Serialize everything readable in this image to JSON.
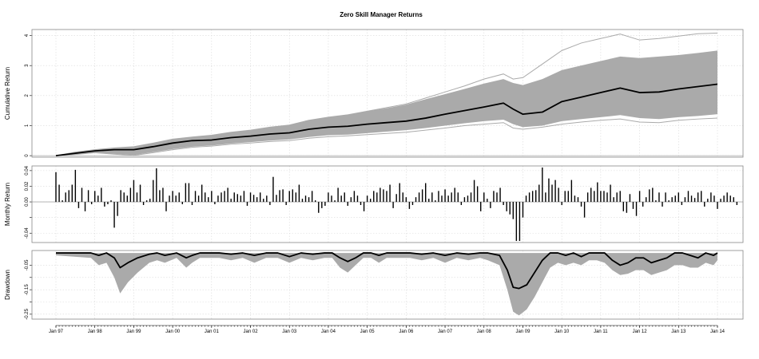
{
  "colors": {
    "main": "#000000",
    "simulations": "#aaaaaa",
    "grid": "#d9d9d9"
  },
  "chart_data": {
    "type": "line",
    "title": "Zero Skill Manager Returns",
    "x_tick_labels": [
      "Jan 97",
      "Jan 98",
      "Jan 99",
      "Jan 00",
      "Jan 01",
      "Jan 02",
      "Jan 03",
      "Jan 04",
      "Jan 05",
      "Jan 06",
      "Jan 07",
      "Jan 08",
      "Jan 09",
      "Jan 10",
      "Jan 11",
      "Jan 12",
      "Jan 13",
      "Jan 14"
    ],
    "x_range": [
      "Jan 97",
      "Jan 14"
    ],
    "grid": true,
    "panels": [
      {
        "id": "cumulative",
        "type": "line",
        "ylabel": "Cumulative Return",
        "ylim": [
          -0.05,
          4.2
        ],
        "yticks": [
          0,
          1,
          2,
          3,
          4
        ],
        "ytick_labels": [
          "0",
          "1",
          "2",
          "3",
          "4"
        ],
        "main_series": {
          "x": [
            1997,
            1997.5,
            1998,
            1998.5,
            1999,
            1999.5,
            2000,
            2000.5,
            2001,
            2001.5,
            2002,
            2002.5,
            2003,
            2003.5,
            2004,
            2004.5,
            2005,
            2005.5,
            2006,
            2006.5,
            2007,
            2007.5,
            2008,
            2008.5,
            2008.75,
            2009,
            2009.5,
            2010,
            2010.5,
            2011,
            2011.5,
            2012,
            2012.5,
            2013,
            2013.5,
            2014
          ],
          "y": [
            0,
            0.08,
            0.16,
            0.2,
            0.2,
            0.3,
            0.42,
            0.5,
            0.52,
            0.6,
            0.65,
            0.72,
            0.76,
            0.88,
            0.95,
            0.98,
            1.05,
            1.1,
            1.15,
            1.25,
            1.38,
            1.5,
            1.62,
            1.75,
            1.55,
            1.38,
            1.45,
            1.8,
            1.95,
            2.1,
            2.25,
            2.1,
            2.12,
            2.22,
            2.3,
            2.38
          ]
        },
        "band": {
          "upper": [
            0,
            0.12,
            0.2,
            0.26,
            0.3,
            0.42,
            0.55,
            0.62,
            0.68,
            0.78,
            0.85,
            0.95,
            1.02,
            1.18,
            1.28,
            1.36,
            1.48,
            1.58,
            1.7,
            1.88,
            2.05,
            2.22,
            2.4,
            2.55,
            2.42,
            2.35,
            2.55,
            2.85,
            3.0,
            3.15,
            3.3,
            3.25,
            3.3,
            3.35,
            3.42,
            3.5
          ],
          "lower": [
            0,
            0.04,
            0.1,
            0.06,
            0.02,
            0.12,
            0.22,
            0.3,
            0.34,
            0.4,
            0.45,
            0.5,
            0.54,
            0.62,
            0.68,
            0.7,
            0.75,
            0.8,
            0.85,
            0.92,
            1.0,
            1.08,
            1.15,
            1.2,
            1.05,
            0.95,
            1.0,
            1.15,
            1.22,
            1.28,
            1.35,
            1.25,
            1.22,
            1.28,
            1.32,
            1.38
          ]
        },
        "extreme_upper": [
          0,
          0.12,
          0.2,
          0.26,
          0.3,
          0.42,
          0.55,
          0.62,
          0.68,
          0.78,
          0.85,
          0.95,
          1.02,
          1.18,
          1.28,
          1.36,
          1.48,
          1.6,
          1.72,
          1.92,
          2.12,
          2.32,
          2.55,
          2.72,
          2.55,
          2.6,
          3.05,
          3.5,
          3.75,
          3.9,
          4.05,
          3.85,
          3.9,
          3.98,
          4.06,
          4.08
        ],
        "extreme_lower": [
          0,
          0.04,
          0.1,
          0.05,
          0.01,
          0.1,
          0.2,
          0.28,
          0.32,
          0.38,
          0.42,
          0.47,
          0.5,
          0.58,
          0.63,
          0.66,
          0.7,
          0.74,
          0.78,
          0.85,
          0.92,
          1.0,
          1.05,
          1.1,
          0.92,
          0.88,
          0.95,
          1.05,
          1.12,
          1.18,
          1.22,
          1.12,
          1.1,
          1.18,
          1.22,
          1.25
        ]
      },
      {
        "id": "monthly",
        "type": "bar",
        "ylabel": "Monthly Return",
        "ylim": [
          -0.052,
          0.046
        ],
        "yticks": [
          -0.04,
          -0.02,
          0,
          0.02,
          0.04
        ],
        "ytick_labels": [
          "-0.04",
          "",
          "0.00",
          "0.02",
          "0.04"
        ],
        "start": "Jan 97",
        "values": [
          0.038,
          0.022,
          0.002,
          0.012,
          0.015,
          0.022,
          0.041,
          -0.008,
          0.018,
          -0.012,
          0.015,
          -0.003,
          0.014,
          0.008,
          0.018,
          -0.006,
          -0.003,
          0.002,
          -0.033,
          -0.018,
          0.015,
          0.012,
          0.008,
          0.018,
          0.028,
          0.012,
          0.022,
          -0.004,
          0.002,
          0.004,
          0.028,
          0.043,
          0.015,
          0.018,
          -0.012,
          0.008,
          0.014,
          0.008,
          0.012,
          -0.003,
          0.024,
          0.024,
          -0.004,
          0.014,
          0.008,
          0.022,
          0.012,
          0.006,
          0.014,
          -0.003,
          0.008,
          0.012,
          0.014,
          0.018,
          0.004,
          0.012,
          0.01,
          0.008,
          0.014,
          -0.005,
          0.012,
          0.009,
          0.006,
          0.012,
          0.004,
          0.008,
          -0.004,
          0.032,
          0.009,
          0.015,
          0.016,
          -0.004,
          0.014,
          0.016,
          0.012,
          0.022,
          0.004,
          0.008,
          0.006,
          0.014,
          0.002,
          -0.014,
          -0.008,
          -0.005,
          0.012,
          0.008,
          0.002,
          0.018,
          0.008,
          0.012,
          -0.005,
          0.006,
          0.014,
          0.008,
          -0.004,
          -0.012,
          0.008,
          0.004,
          0.014,
          0.012,
          0.018,
          0.016,
          0.014,
          0.022,
          -0.008,
          0.01,
          0.024,
          0.012,
          0.006,
          -0.009,
          -0.004,
          0.006,
          0.012,
          0.016,
          0.024,
          0.004,
          0.012,
          0.002,
          0.014,
          0.008,
          0.016,
          0.008,
          0.012,
          0.018,
          0.012,
          -0.004,
          0.006,
          0.008,
          0.012,
          0.028,
          0.02,
          -0.012,
          0.012,
          0.004,
          -0.008,
          0.014,
          0.012,
          0.018,
          -0.004,
          -0.012,
          -0.016,
          -0.022,
          -0.05,
          -0.05,
          -0.02,
          0.008,
          0.012,
          0.014,
          0.015,
          0.022,
          0.044,
          0.012,
          0.03,
          0.022,
          0.028,
          0.018,
          -0.004,
          0.014,
          0.014,
          0.028,
          0.008,
          0.006,
          -0.006,
          -0.02,
          0.012,
          0.018,
          0.014,
          0.025,
          0.014,
          0.014,
          0.012,
          0.022,
          0.006,
          0.012,
          0.014,
          -0.012,
          -0.014,
          0.01,
          -0.009,
          -0.018,
          0.014,
          -0.006,
          0.006,
          0.016,
          0.018,
          0.002,
          0.012,
          -0.006,
          0.012,
          0.002,
          0.006,
          0.008,
          0.012,
          -0.004,
          0.006,
          0.014,
          0.008,
          0.005,
          0.012,
          0.014,
          -0.006,
          0.004,
          0.012,
          0.008,
          -0.009,
          0.004,
          0.008,
          0.012,
          0.008,
          0.006,
          -0.004
        ]
      },
      {
        "id": "drawdown",
        "type": "area",
        "ylabel": "Drawdown",
        "ylim": [
          -0.27,
          0.01
        ],
        "yticks": [
          -0.25,
          -0.2,
          -0.15,
          -0.1,
          -0.05
        ],
        "ytick_labels": [
          "-0.25",
          "",
          "-0.15",
          "",
          "-0.05"
        ],
        "main_series": {
          "x": [
            1997,
            1997.9,
            1998.1,
            1998.3,
            1998.5,
            1998.65,
            1998.85,
            1999.1,
            1999.4,
            1999.6,
            1999.8,
            2000.1,
            2000.35,
            2000.5,
            2000.7,
            2000.9,
            2001.2,
            2001.5,
            2001.8,
            2002.1,
            2002.4,
            2002.7,
            2003.0,
            2003.3,
            2003.6,
            2003.9,
            2004.1,
            2004.3,
            2004.5,
            2004.7,
            2004.9,
            2005.1,
            2005.3,
            2005.5,
            2005.8,
            2006.1,
            2006.4,
            2006.7,
            2007.0,
            2007.3,
            2007.6,
            2007.9,
            2008.1,
            2008.4,
            2008.6,
            2008.75,
            2008.9,
            2009.1,
            2009.3,
            2009.5,
            2009.7,
            2009.9,
            2010.1,
            2010.3,
            2010.5,
            2010.7,
            2010.9,
            2011.1,
            2011.3,
            2011.5,
            2011.7,
            2011.9,
            2012.1,
            2012.3,
            2012.5,
            2012.7,
            2012.9,
            2013.1,
            2013.3,
            2013.5,
            2013.7,
            2013.9,
            2014
          ],
          "y": [
            0,
            0,
            -0.01,
            0,
            -0.02,
            -0.06,
            -0.04,
            -0.02,
            -0.005,
            0,
            -0.01,
            0,
            -0.02,
            -0.01,
            0,
            0,
            0,
            -0.005,
            0,
            -0.01,
            0,
            0,
            -0.015,
            0,
            -0.005,
            0,
            0,
            -0.02,
            -0.035,
            -0.02,
            0,
            0,
            -0.01,
            0,
            0,
            0,
            -0.005,
            0,
            -0.01,
            0,
            -0.005,
            0,
            0,
            -0.01,
            -0.07,
            -0.14,
            -0.145,
            -0.13,
            -0.08,
            -0.03,
            0,
            0,
            -0.01,
            0,
            -0.015,
            0,
            0,
            0,
            -0.03,
            -0.05,
            -0.04,
            -0.02,
            -0.02,
            -0.04,
            -0.03,
            -0.02,
            0,
            0,
            -0.01,
            -0.02,
            0,
            -0.01,
            0
          ]
        },
        "band_lower": [
          -0.01,
          -0.02,
          -0.05,
          -0.04,
          -0.1,
          -0.165,
          -0.12,
          -0.08,
          -0.04,
          -0.03,
          -0.04,
          -0.02,
          -0.06,
          -0.04,
          -0.02,
          -0.02,
          -0.02,
          -0.03,
          -0.02,
          -0.04,
          -0.02,
          -0.02,
          -0.04,
          -0.02,
          -0.03,
          -0.02,
          -0.02,
          -0.06,
          -0.08,
          -0.05,
          -0.02,
          -0.02,
          -0.04,
          -0.02,
          -0.02,
          -0.02,
          -0.03,
          -0.02,
          -0.04,
          -0.02,
          -0.03,
          -0.02,
          -0.03,
          -0.05,
          -0.15,
          -0.24,
          -0.255,
          -0.23,
          -0.18,
          -0.12,
          -0.06,
          -0.04,
          -0.05,
          -0.04,
          -0.05,
          -0.03,
          -0.03,
          -0.04,
          -0.07,
          -0.09,
          -0.085,
          -0.07,
          -0.07,
          -0.09,
          -0.08,
          -0.07,
          -0.05,
          -0.05,
          -0.06,
          -0.06,
          -0.04,
          -0.05,
          -0.03
        ]
      }
    ]
  }
}
